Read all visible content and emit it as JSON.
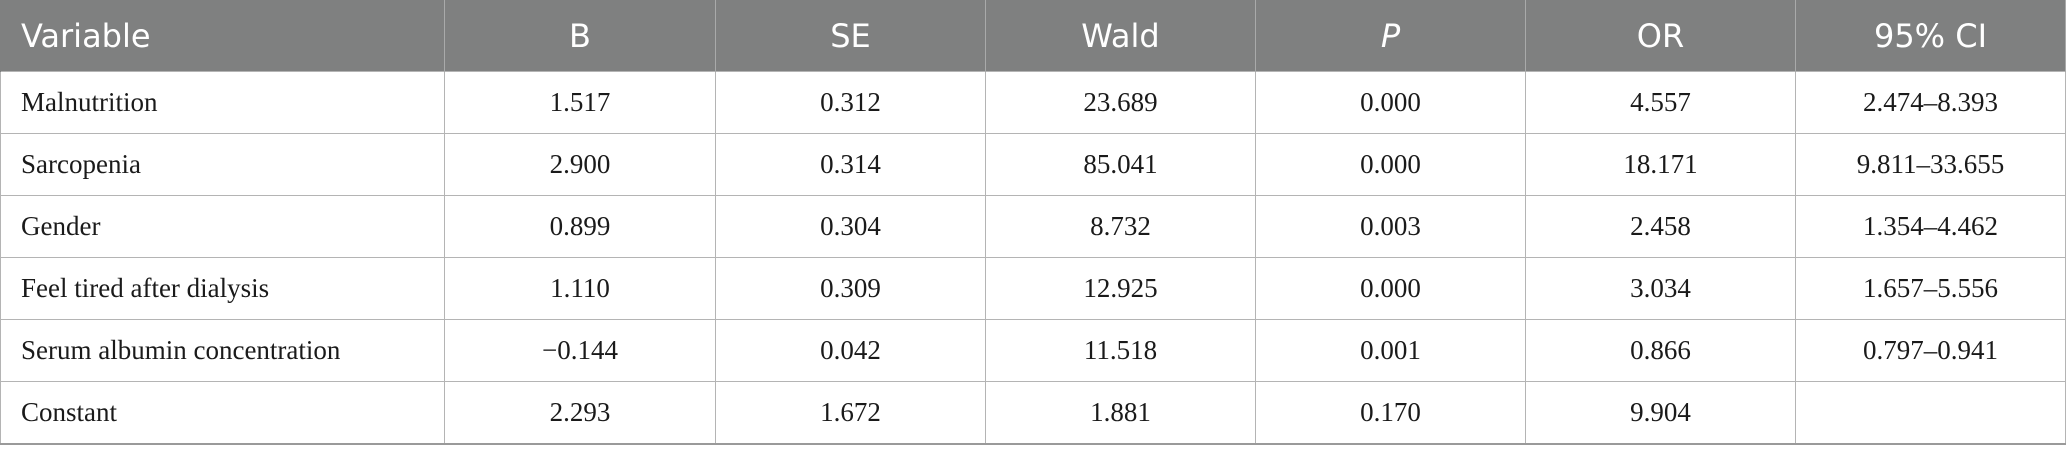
{
  "table": {
    "headers": [
      "Variable",
      "B",
      "SE",
      "Wald",
      "P",
      "OR",
      "95% CI"
    ],
    "rows": [
      [
        "Malnutrition",
        "1.517",
        "0.312",
        "23.689",
        "0.000",
        "4.557",
        "2.474–8.393"
      ],
      [
        "Sarcopenia",
        "2.900",
        "0.314",
        "85.041",
        "0.000",
        "18.171",
        "9.811–33.655"
      ],
      [
        "Gender",
        "0.899",
        "0.304",
        "8.732",
        "0.003",
        "2.458",
        "1.354–4.462"
      ],
      [
        "Feel tired after dialysis",
        "1.110",
        "0.309",
        "12.925",
        "0.000",
        "3.034",
        "1.657–5.556"
      ],
      [
        "Serum albumin concentration",
        "−0.144",
        "0.042",
        "11.518",
        "0.001",
        "0.866",
        "0.797–0.941"
      ],
      [
        "Constant",
        "2.293",
        "1.672",
        "1.881",
        "0.170",
        "9.904",
        ""
      ]
    ]
  },
  "colors": {
    "header_background": "#7f8080",
    "header_text": "#ffffff",
    "grid_line": "#b4b4b4"
  }
}
